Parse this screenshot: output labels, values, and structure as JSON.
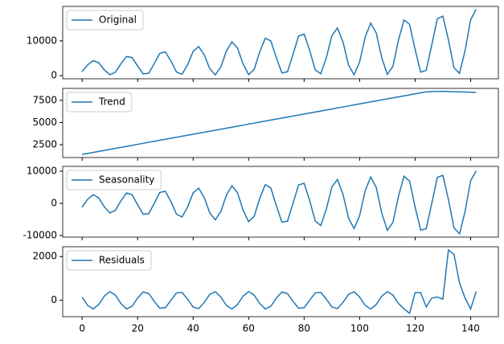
{
  "chart_data": [
    {
      "type": "line",
      "legend": "upper left",
      "x": [
        0,
        2,
        4,
        6,
        8,
        10,
        12,
        14,
        16,
        18,
        20,
        22,
        24,
        26,
        28,
        30,
        32,
        34,
        36,
        38,
        40,
        42,
        44,
        46,
        48,
        50,
        52,
        54,
        56,
        58,
        60,
        62,
        64,
        66,
        68,
        70,
        72,
        74,
        76,
        78,
        80,
        82,
        84,
        86,
        88,
        90,
        92,
        94,
        96,
        98,
        100,
        102,
        104,
        106,
        108,
        110,
        112,
        114,
        116,
        118,
        120,
        122,
        124,
        126,
        128,
        130,
        132,
        134,
        136,
        138,
        140,
        142
      ],
      "series": [
        {
          "name": "Original",
          "color": "#1f77b4",
          "values": [
            1158,
            3102,
            4328,
            3652,
            1642,
            243,
            987,
            3455,
            5495,
            5198,
            2764,
            489,
            691,
            3454,
            6400,
            6810,
            4225,
            1044,
            386,
            3130,
            6957,
            8362,
            5981,
            1986,
            209,
            2557,
            7103,
            9722,
            7940,
            3349,
            292,
            1837,
            6827,
            10763,
            9979,
            5126,
            745,
            1112,
            6154,
            11378,
            11954,
            7263,
            1662,
            518,
            5158,
            11506,
            13713,
            9675,
            3098,
            214,
            3956,
            11105,
            15117,
            12227,
            5055,
            340,
            2688,
            10200,
            16030,
            14761,
            7489,
            1002,
            1533,
            8854,
            16357,
            17097,
            10300,
            2281,
            651,
            7186,
            16056,
            19065
          ]
        }
      ],
      "xlim": [
        -7,
        150
      ],
      "ylim": [
        -900,
        19900
      ],
      "yticks": [
        0,
        10000
      ]
    },
    {
      "type": "line",
      "legend": "upper left",
      "x": [
        0,
        2,
        4,
        6,
        8,
        10,
        12,
        14,
        16,
        18,
        20,
        22,
        24,
        26,
        28,
        30,
        32,
        34,
        36,
        38,
        40,
        42,
        44,
        46,
        48,
        50,
        52,
        54,
        56,
        58,
        60,
        62,
        64,
        66,
        68,
        70,
        72,
        74,
        76,
        78,
        80,
        82,
        84,
        86,
        88,
        90,
        92,
        94,
        96,
        98,
        100,
        102,
        104,
        106,
        108,
        110,
        112,
        114,
        116,
        118,
        120,
        122,
        124,
        126,
        128,
        130,
        132,
        134,
        136,
        138,
        140,
        142
      ],
      "series": [
        {
          "name": "Trend",
          "color": "#1f77b4",
          "values": [
            1400,
            1514,
            1628,
            1742,
            1856,
            1970,
            2084,
            2198,
            2312,
            2426,
            2540,
            2654,
            2768,
            2882,
            2996,
            3110,
            3224,
            3338,
            3452,
            3566,
            3680,
            3794,
            3908,
            4022,
            4136,
            4250,
            4364,
            4478,
            4592,
            4706,
            4820,
            4934,
            5048,
            5162,
            5276,
            5390,
            5504,
            5618,
            5732,
            5846,
            5960,
            6074,
            6188,
            6302,
            6416,
            6530,
            6644,
            6758,
            6872,
            6986,
            7100,
            7214,
            7328,
            7442,
            7556,
            7670,
            7784,
            7898,
            8012,
            8126,
            8240,
            8354,
            8468,
            8500,
            8510,
            8520,
            8500,
            8480,
            8460,
            8440,
            8420,
            8400
          ]
        }
      ],
      "xlim": [
        -7,
        150
      ],
      "ylim": [
        1050,
        8850
      ],
      "yticks": [
        2500,
        5000,
        7500
      ]
    },
    {
      "type": "line",
      "legend": "upper left",
      "x": [
        0,
        2,
        4,
        6,
        8,
        10,
        12,
        14,
        16,
        18,
        20,
        22,
        24,
        26,
        28,
        30,
        32,
        34,
        36,
        38,
        40,
        42,
        44,
        46,
        48,
        50,
        52,
        54,
        56,
        58,
        60,
        62,
        64,
        66,
        68,
        70,
        72,
        74,
        76,
        78,
        80,
        82,
        84,
        86,
        88,
        90,
        92,
        94,
        96,
        98,
        100,
        102,
        104,
        106,
        108,
        110,
        112,
        114,
        116,
        118,
        120,
        122,
        124,
        126,
        128,
        130,
        132,
        134,
        136,
        138,
        140,
        142
      ],
      "series": [
        {
          "name": "Seasonality",
          "color": "#1f77b4",
          "values": [
            -1205,
            1258,
            2715,
            1664,
            -1082,
            -2995,
            -2165,
            814,
            3214,
            2691,
            -450,
            -3358,
            -3224,
            0,
            3410,
            3756,
            533,
            -3369,
            -4260,
            -1143,
            3220,
            4723,
            1811,
            -2958,
            -5130,
            -2531,
            2584,
            5459,
            3281,
            -2094,
            -5696,
            -4048,
            1499,
            5830,
            4811,
            -794,
            -5846,
            -5545,
            0,
            5731,
            6245,
            876,
            -5490,
            -6876,
            -1828,
            5103,
            7424,
            2823,
            -4575,
            -7874,
            -3856,
            3909,
            8204,
            4898,
            -3106,
            -8396,
            -5932,
            2184,
            8445,
            6931,
            -1138,
            -8335,
            -7866,
            0,
            8052,
            8733,
            1220,
            -7610,
            -9491,
            -2512,
            6987,
            10124
          ]
        }
      ],
      "xlim": [
        -7,
        150
      ],
      "ylim": [
        -10500,
        11500
      ],
      "yticks": [
        -10000,
        0,
        10000
      ]
    },
    {
      "type": "line",
      "legend": "upper left",
      "x": [
        0,
        2,
        4,
        6,
        8,
        10,
        12,
        14,
        16,
        18,
        20,
        22,
        24,
        26,
        28,
        30,
        32,
        34,
        36,
        38,
        40,
        42,
        44,
        46,
        48,
        50,
        52,
        54,
        56,
        58,
        60,
        62,
        64,
        66,
        68,
        70,
        72,
        74,
        76,
        78,
        80,
        82,
        84,
        86,
        88,
        90,
        92,
        94,
        96,
        98,
        100,
        102,
        104,
        106,
        108,
        110,
        112,
        114,
        116,
        118,
        120,
        122,
        124,
        126,
        128,
        130,
        132,
        134,
        136,
        138,
        140,
        142
      ],
      "series": [
        {
          "name": "Residuals",
          "color": "#1f77b4",
          "values": [
            147,
            -235,
            -399,
            -193,
            193,
            399,
            235,
            -147,
            -393,
            -274,
            100,
            380,
            308,
            -50,
            -362,
            -338,
            0,
            338,
            362,
            50,
            -308,
            -380,
            -100,
            274,
            393,
            147,
            -235,
            -399,
            -193,
            193,
            399,
            235,
            -147,
            -393,
            -274,
            100,
            380,
            308,
            -50,
            -362,
            -338,
            0,
            338,
            362,
            50,
            -308,
            -380,
            -100,
            274,
            393,
            147,
            -235,
            -399,
            -193,
            193,
            399,
            235,
            -147,
            -393,
            -600,
            350,
            350,
            -300,
            100,
            150,
            50,
            2300,
            2100,
            800,
            100,
            -400,
            400
          ]
        }
      ],
      "xlim": [
        -7,
        150
      ],
      "ylim": [
        -750,
        2450
      ],
      "yticks": [
        0,
        2000
      ],
      "xticks": [
        0,
        20,
        40,
        60,
        80,
        100,
        120,
        140
      ]
    }
  ]
}
